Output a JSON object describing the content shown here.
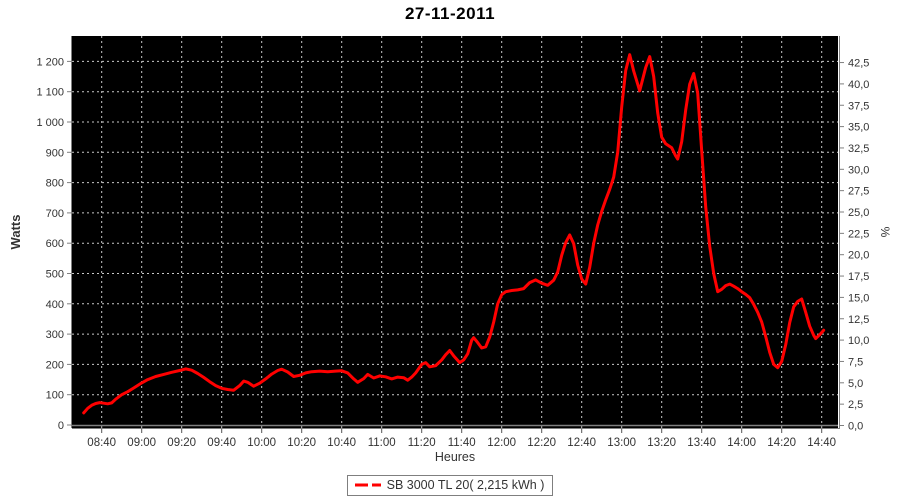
{
  "title": "27-11-2011",
  "legend": {
    "series_label": "SB 3000 TL 20( 2,215 kWh )"
  },
  "colors": {
    "series_line": "#ff0000",
    "plot_background": "#000000",
    "gridline": "#c9c9c9",
    "axis_line": "#7f7f7f",
    "tick_label": "#333333",
    "title": "#000000"
  },
  "chart_data": {
    "type": "line",
    "title": "27-11-2011",
    "xlabel": "Heures",
    "ylabel_left": "Watts",
    "ylabel_right": "%",
    "grid": true,
    "legend_position": "bottom",
    "x_ticks": [
      "08:40",
      "09:00",
      "09:20",
      "09:40",
      "10:00",
      "10:20",
      "10:40",
      "11:00",
      "11:20",
      "11:40",
      "12:00",
      "12:20",
      "12:40",
      "13:00",
      "13:20",
      "13:40",
      "14:00",
      "14:20",
      "14:40"
    ],
    "y_ticks_left": [
      "0",
      "100",
      "200",
      "300",
      "400",
      "500",
      "600",
      "700",
      "800",
      "900",
      "1 000",
      "1 100",
      "1 200"
    ],
    "y_ticks_right": [
      "0,0",
      "2,5",
      "5,0",
      "7,5",
      "10,0",
      "12,5",
      "15,0",
      "17,5",
      "20,0",
      "22,5",
      "25,0",
      "27,5",
      "30,0",
      "32,5",
      "35,0",
      "37,5",
      "40,0",
      "42,5"
    ],
    "y_left_axis_range_watts": [
      0,
      1290
    ],
    "y_right_axis_range_pct": [
      0,
      45.5
    ],
    "x_axis_range": [
      "08:26",
      "14:49"
    ],
    "series": [
      {
        "name": "SB 3000 TL 20( 2,215 kWh )",
        "color": "#ff0000",
        "points": [
          [
            "08:31",
            40
          ],
          [
            "08:33",
            55
          ],
          [
            "08:35",
            65
          ],
          [
            "08:37",
            71
          ],
          [
            "08:39",
            74
          ],
          [
            "08:41",
            72
          ],
          [
            "08:43",
            70
          ],
          [
            "08:45",
            73
          ],
          [
            "08:47",
            85
          ],
          [
            "08:50",
            100
          ],
          [
            "08:53",
            110
          ],
          [
            "08:56",
            122
          ],
          [
            "09:00",
            139
          ],
          [
            "09:03",
            150
          ],
          [
            "09:07",
            160
          ],
          [
            "09:11",
            167
          ],
          [
            "09:15",
            174
          ],
          [
            "09:19",
            180
          ],
          [
            "09:22",
            185
          ],
          [
            "09:25",
            181
          ],
          [
            "09:28",
            170
          ],
          [
            "09:31",
            157
          ],
          [
            "09:34",
            143
          ],
          [
            "09:37",
            130
          ],
          [
            "09:40",
            121
          ],
          [
            "09:43",
            117
          ],
          [
            "09:46",
            115
          ],
          [
            "09:49",
            130
          ],
          [
            "09:51",
            145
          ],
          [
            "09:53",
            141
          ],
          [
            "09:56",
            128
          ],
          [
            "09:59",
            138
          ],
          [
            "10:02",
            152
          ],
          [
            "10:05",
            168
          ],
          [
            "10:08",
            180
          ],
          [
            "10:10",
            184
          ],
          [
            "10:13",
            175
          ],
          [
            "10:16",
            160
          ],
          [
            "10:19",
            164
          ],
          [
            "10:22",
            172
          ],
          [
            "10:25",
            176
          ],
          [
            "10:29",
            178
          ],
          [
            "10:33",
            176
          ],
          [
            "10:37",
            178
          ],
          [
            "10:40",
            179
          ],
          [
            "10:43",
            172
          ],
          [
            "10:46",
            152
          ],
          [
            "10:48",
            141
          ],
          [
            "10:51",
            153
          ],
          [
            "10:53",
            167
          ],
          [
            "10:56",
            155
          ],
          [
            "10:59",
            162
          ],
          [
            "11:02",
            159
          ],
          [
            "11:05",
            152
          ],
          [
            "11:08",
            158
          ],
          [
            "11:11",
            156
          ],
          [
            "11:13",
            148
          ],
          [
            "11:15",
            158
          ],
          [
            "11:17",
            172
          ],
          [
            "11:20",
            200
          ],
          [
            "11:22",
            206
          ],
          [
            "11:24",
            192
          ],
          [
            "11:27",
            196
          ],
          [
            "11:30",
            215
          ],
          [
            "11:32",
            232
          ],
          [
            "11:34",
            246
          ],
          [
            "11:36",
            228
          ],
          [
            "11:39",
            206
          ],
          [
            "11:41",
            215
          ],
          [
            "11:43",
            235
          ],
          [
            "11:45",
            280
          ],
          [
            "11:46",
            288
          ],
          [
            "11:48",
            272
          ],
          [
            "11:50",
            254
          ],
          [
            "11:52",
            258
          ],
          [
            "11:54",
            290
          ],
          [
            "11:56",
            340
          ],
          [
            "11:58",
            400
          ],
          [
            "12:00",
            430
          ],
          [
            "12:02",
            440
          ],
          [
            "12:05",
            444
          ],
          [
            "12:08",
            446
          ],
          [
            "12:11",
            450
          ],
          [
            "12:14",
            470
          ],
          [
            "12:17",
            479
          ],
          [
            "12:20",
            468
          ],
          [
            "12:23",
            461
          ],
          [
            "12:26",
            478
          ],
          [
            "12:28",
            505
          ],
          [
            "12:30",
            560
          ],
          [
            "12:32",
            602
          ],
          [
            "12:34",
            627
          ],
          [
            "12:36",
            598
          ],
          [
            "12:38",
            528
          ],
          [
            "12:40",
            482
          ],
          [
            "12:42",
            465
          ],
          [
            "12:44",
            520
          ],
          [
            "12:46",
            600
          ],
          [
            "12:48",
            660
          ],
          [
            "12:50",
            705
          ],
          [
            "12:52",
            743
          ],
          [
            "12:54",
            778
          ],
          [
            "12:56",
            818
          ],
          [
            "12:58",
            900
          ],
          [
            "13:00",
            1050
          ],
          [
            "13:02",
            1170
          ],
          [
            "13:04",
            1222
          ],
          [
            "13:06",
            1168
          ],
          [
            "13:09",
            1103
          ],
          [
            "13:12",
            1180
          ],
          [
            "13:14",
            1216
          ],
          [
            "13:16",
            1150
          ],
          [
            "13:18",
            1030
          ],
          [
            "13:20",
            950
          ],
          [
            "13:22",
            928
          ],
          [
            "13:25",
            915
          ],
          [
            "13:27",
            888
          ],
          [
            "13:28",
            878
          ],
          [
            "13:30",
            935
          ],
          [
            "13:32",
            1040
          ],
          [
            "13:34",
            1125
          ],
          [
            "13:36",
            1160
          ],
          [
            "13:38",
            1095
          ],
          [
            "13:40",
            905
          ],
          [
            "13:42",
            720
          ],
          [
            "13:44",
            590
          ],
          [
            "13:46",
            500
          ],
          [
            "13:48",
            440
          ],
          [
            "13:50",
            448
          ],
          [
            "13:52",
            460
          ],
          [
            "13:54",
            465
          ],
          [
            "13:56",
            458
          ],
          [
            "13:58",
            450
          ],
          [
            "14:00",
            440
          ],
          [
            "14:02",
            431
          ],
          [
            "14:04",
            420
          ],
          [
            "14:06",
            398
          ],
          [
            "14:08",
            372
          ],
          [
            "14:10",
            340
          ],
          [
            "14:12",
            292
          ],
          [
            "14:14",
            240
          ],
          [
            "14:16",
            200
          ],
          [
            "14:18",
            189
          ],
          [
            "14:20",
            210
          ],
          [
            "14:22",
            265
          ],
          [
            "14:24",
            338
          ],
          [
            "14:26",
            390
          ],
          [
            "14:28",
            408
          ],
          [
            "14:30",
            416
          ],
          [
            "14:32",
            372
          ],
          [
            "14:34",
            326
          ],
          [
            "14:36",
            296
          ],
          [
            "14:37",
            285
          ],
          [
            "14:39",
            298
          ],
          [
            "14:41",
            313
          ]
        ]
      }
    ]
  }
}
